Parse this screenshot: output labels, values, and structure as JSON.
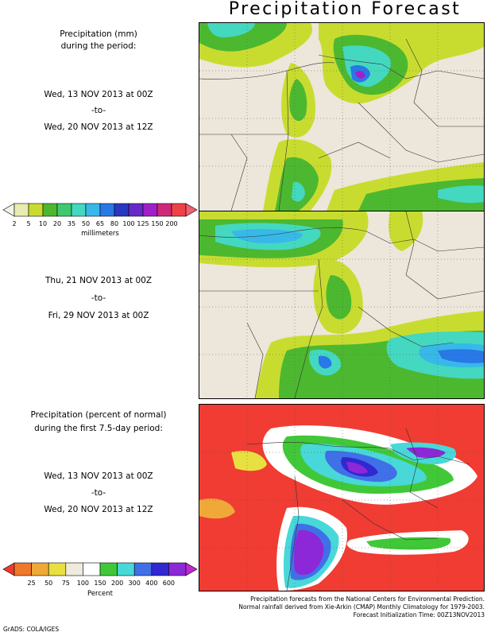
{
  "title": "Precipitation Forecast",
  "panel1": {
    "heading": [
      "Precipitation (mm)",
      "during the period:"
    ],
    "period": [
      "Wed, 13 NOV 2013 at 00Z",
      "-to-",
      "Wed, 20 NOV 2013 at 12Z"
    ]
  },
  "colorbar_mm": {
    "ticks": [
      "2",
      "5",
      "10",
      "20",
      "35",
      "50",
      "65",
      "80",
      "100",
      "125",
      "150",
      "200"
    ],
    "unit": "millimeters",
    "colors": [
      "#e8ecb0",
      "#c8dc30",
      "#4cb830",
      "#40c870",
      "#44d8c0",
      "#38b8e8",
      "#2878e8",
      "#2838c0",
      "#6828c8",
      "#a020c8",
      "#d02878",
      "#f04048"
    ],
    "arrow_colors": [
      "#f2f2e8",
      "#f06070"
    ]
  },
  "panel2": {
    "period": [
      "Thu, 21 NOV 2013 at 00Z",
      "-to-",
      "Fri, 29 NOV 2013 at 00Z"
    ]
  },
  "panel3": {
    "heading": [
      "Precipitation (percent of normal)",
      "during the first 7.5-day period:"
    ],
    "period": [
      "Wed, 13 NOV 2013 at 00Z",
      "-to-",
      "Wed, 20 NOV 2013 at 12Z"
    ]
  },
  "colorbar_pct": {
    "ticks": [
      "25",
      "50",
      "75",
      "100",
      "150",
      "200",
      "300",
      "400",
      "600"
    ],
    "unit": "Percent",
    "colors": [
      "#f07828",
      "#f0a838",
      "#e8e040",
      "#eeeadc",
      "#ffffff",
      "#40c838",
      "#48d8d8",
      "#4070e8",
      "#3028d0",
      "#8c28d8"
    ],
    "arrow_colors": [
      "#f03a30",
      "#c028d0"
    ]
  },
  "map_colors": {
    "land": "#ede6da",
    "ocean_pct": "#f03c32",
    "border": "#333333",
    "grid": "#555555"
  },
  "credits": [
    "Precipitation forecasts from the National Centers for Environmental Prediction.",
    "Normal rainfall derived from Xie-Arkin (CMAP) Monthly Climatology for 1979-2003.",
    "Forecast Initialization Time: 00Z13NOV2013"
  ],
  "footer_left": "GrADS: COLA/IGES"
}
